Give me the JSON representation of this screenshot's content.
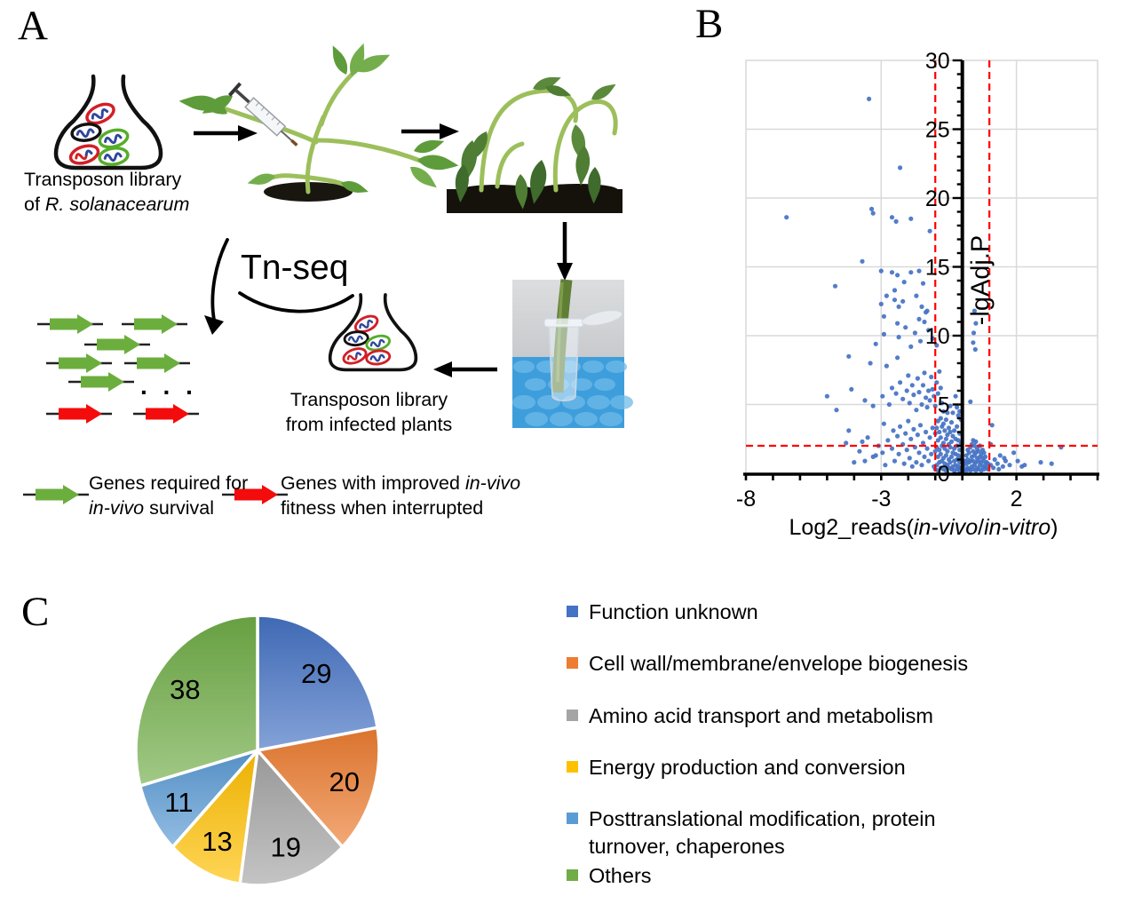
{
  "figure": {
    "panelA": {
      "label": "A",
      "flask1_caption_l1": "Transposon library",
      "flask1_caption_l2_prefix": "of ",
      "flask1_caption_l2_species": "R. solanacearum",
      "tnseq": "Tn-seq",
      "flask2_caption_l1": "Transposon library",
      "flask2_caption_l2": "from infected plants",
      "reads_ellipsis": ". . .",
      "legend_green_l1": "Genes required for",
      "legend_green_l2_italic": "in-vivo",
      "legend_green_l2_rest": " survival",
      "legend_red_l1_prefix": "Genes with improved ",
      "legend_red_l1_italic": "in-vivo",
      "legend_red_l2": "fitness when interrupted",
      "green_arrow_color": "#6CAE3E",
      "red_arrow_color": "#F40B0B"
    },
    "panelB": {
      "label": "B"
    },
    "panelC": {
      "label": "C"
    }
  },
  "chart_data": [
    {
      "type": "scatter",
      "panel": "B",
      "title": "",
      "xlabel": "Log2_reads(in-vivo/in-vitro)",
      "xlabel_parts": [
        {
          "t": "Log2_reads(",
          "i": false
        },
        {
          "t": "in-vivo",
          "i": true
        },
        {
          "t": "/",
          "i": false
        },
        {
          "t": "in-vitro",
          "i": true
        },
        {
          "t": ")",
          "i": false
        }
      ],
      "ylabel": "-lgAdj.P",
      "xlim": [
        -8,
        5
      ],
      "ylim": [
        0,
        30
      ],
      "x_ticks": [
        -8,
        -3,
        2
      ],
      "y_ticks": [
        0,
        5,
        10,
        15,
        20,
        25,
        30
      ],
      "x_gridlines": [
        -3,
        2
      ],
      "grid_color": "#D9D9D9",
      "point_color": "#4472C4",
      "thresholds": {
        "vertical_x": [
          -1,
          1
        ],
        "horizontal_y": 2,
        "color": "#FF0000",
        "style": "dashed"
      },
      "points": [
        [
          -3.45,
          27.2
        ],
        [
          -2.3,
          22.2
        ],
        [
          -6.5,
          18.6
        ],
        [
          -3.35,
          19.2
        ],
        [
          -3.3,
          18.9
        ],
        [
          -2.6,
          18.6
        ],
        [
          -2.45,
          18.3
        ],
        [
          -1.9,
          18.5
        ],
        [
          -1.2,
          17.6
        ],
        [
          -3.7,
          15.4
        ],
        [
          -4.7,
          13.6
        ],
        [
          -3.0,
          14.7
        ],
        [
          -2.6,
          14.6
        ],
        [
          -2.4,
          14.4
        ],
        [
          -2.15,
          13.9
        ],
        [
          -1.9,
          14.6
        ],
        [
          -1.6,
          14.7
        ],
        [
          -1.45,
          13.8
        ],
        [
          -2.8,
          12.9
        ],
        [
          -2.5,
          13.3
        ],
        [
          -3.0,
          12.3
        ],
        [
          -2.5,
          12.6
        ],
        [
          -2.35,
          12.1
        ],
        [
          -2.2,
          12.5
        ],
        [
          -1.7,
          12.9
        ],
        [
          -1.5,
          12.1
        ],
        [
          -1.35,
          11.7
        ],
        [
          -2.9,
          11.4
        ],
        [
          -2.4,
          10.9
        ],
        [
          -1.6,
          11.2
        ],
        [
          -1.4,
          11.0
        ],
        [
          -1.3,
          11.8
        ],
        [
          -2.9,
          10.1
        ],
        [
          -2.35,
          9.9
        ],
        [
          -1.75,
          10.2
        ],
        [
          -1.55,
          9.6
        ],
        [
          -1.9,
          9.2
        ],
        [
          -3.2,
          9.4
        ],
        [
          -2.1,
          10.6
        ],
        [
          -1.25,
          10.4
        ],
        [
          -1.1,
          9.8
        ],
        [
          -0.95,
          9.3
        ],
        [
          0.45,
          11.8
        ],
        [
          0.5,
          10.9
        ],
        [
          0.42,
          10.2
        ],
        [
          0.4,
          9.5
        ],
        [
          0.48,
          9.0
        ],
        [
          -4.2,
          8.5
        ],
        [
          -4.1,
          6.1
        ],
        [
          -5.0,
          5.6
        ],
        [
          -4.65,
          4.6
        ],
        [
          -3.4,
          8.0
        ],
        [
          -2.8,
          7.8
        ],
        [
          -2.4,
          8.4
        ],
        [
          -3.6,
          5.3
        ],
        [
          -3.3,
          4.9
        ],
        [
          -2.95,
          5.6
        ],
        [
          -2.7,
          5.0
        ],
        [
          -2.6,
          6.2
        ],
        [
          -2.45,
          5.8
        ],
        [
          -2.3,
          6.6
        ],
        [
          -2.2,
          5.4
        ],
        [
          -2.05,
          6.0
        ],
        [
          -2.0,
          7.1
        ],
        [
          -1.95,
          5.1
        ],
        [
          -1.85,
          6.4
        ],
        [
          -1.8,
          5.7
        ],
        [
          -1.7,
          4.6
        ],
        [
          -1.65,
          6.9
        ],
        [
          -1.6,
          5.9
        ],
        [
          -1.5,
          5.0
        ],
        [
          -1.45,
          6.4
        ],
        [
          -1.4,
          7.3
        ],
        [
          -1.35,
          5.5
        ],
        [
          -1.3,
          4.8
        ],
        [
          -1.25,
          6.0
        ],
        [
          -1.2,
          5.3
        ],
        [
          -1.15,
          7.0
        ],
        [
          -1.1,
          6.1
        ],
        [
          -1.05,
          5.6
        ],
        [
          -1.0,
          4.9
        ],
        [
          -0.95,
          6.6
        ],
        [
          -0.9,
          5.8
        ],
        [
          -0.85,
          7.4
        ],
        [
          -0.8,
          6.2
        ],
        [
          -0.75,
          5.1
        ],
        [
          -0.7,
          4.5
        ],
        [
          -2.9,
          3.6
        ],
        [
          -2.75,
          2.4
        ],
        [
          -2.6,
          1.8
        ],
        [
          -2.55,
          3.1
        ],
        [
          -2.5,
          0.9
        ],
        [
          -2.4,
          2.7
        ],
        [
          -2.35,
          1.4
        ],
        [
          -2.3,
          3.4
        ],
        [
          -2.2,
          2.1
        ],
        [
          -2.15,
          0.7
        ],
        [
          -2.1,
          2.9
        ],
        [
          -2.05,
          1.7
        ],
        [
          -2.0,
          3.8
        ],
        [
          -1.95,
          1.1
        ],
        [
          -1.9,
          2.5
        ],
        [
          -1.85,
          0.5
        ],
        [
          -1.8,
          3.2
        ],
        [
          -1.75,
          1.9
        ],
        [
          -1.7,
          0.8
        ],
        [
          -1.65,
          2.8
        ],
        [
          -1.6,
          1.5
        ],
        [
          -1.55,
          3.5
        ],
        [
          -1.5,
          0.6
        ],
        [
          -1.45,
          2.2
        ],
        [
          -1.4,
          1.2
        ],
        [
          -1.35,
          3.0
        ],
        [
          -1.3,
          1.8
        ],
        [
          -1.25,
          0.9
        ],
        [
          -1.2,
          2.6
        ],
        [
          -1.15,
          1.4
        ],
        [
          -1.1,
          3.3
        ],
        [
          -1.05,
          0.5
        ],
        [
          -3.1,
          2.0
        ],
        [
          -3.3,
          1.2
        ],
        [
          -3.5,
          2.6
        ],
        [
          -3.8,
          1.6
        ],
        [
          -4.0,
          0.8
        ],
        [
          -4.3,
          2.2
        ],
        [
          -4.2,
          3.1
        ],
        [
          -3.7,
          2.3
        ],
        [
          -3.2,
          1.3
        ],
        [
          -3.6,
          0.9
        ],
        [
          -2.95,
          1.5
        ],
        [
          -2.85,
          0.6
        ],
        [
          -0.35,
          4.4
        ],
        [
          -0.2,
          4.8
        ],
        [
          -0.15,
          4.2
        ],
        [
          -0.45,
          4.9
        ],
        [
          -0.25,
          5.6
        ],
        [
          -0.1,
          4.5
        ],
        [
          -0.55,
          4.4
        ],
        [
          -0.05,
          3.9
        ],
        [
          -1.0,
          0.3
        ],
        [
          -1.0,
          1.6
        ],
        [
          -1.0,
          2.9
        ],
        [
          -0.95,
          0.6
        ],
        [
          -0.95,
          1.9
        ],
        [
          -0.95,
          3.3
        ],
        [
          -0.9,
          0.2
        ],
        [
          -0.9,
          1.2
        ],
        [
          -0.9,
          2.4
        ],
        [
          -0.9,
          3.8
        ],
        [
          -0.85,
          0.8
        ],
        [
          -0.85,
          1.7
        ],
        [
          -0.85,
          3.0
        ],
        [
          -0.8,
          0.4
        ],
        [
          -0.8,
          1.4
        ],
        [
          -0.8,
          2.6
        ],
        [
          -0.8,
          4.0
        ],
        [
          -0.75,
          0.9
        ],
        [
          -0.75,
          2.0
        ],
        [
          -0.75,
          3.4
        ],
        [
          -0.7,
          0.3
        ],
        [
          -0.7,
          1.1
        ],
        [
          -0.7,
          2.2
        ],
        [
          -0.7,
          3.6
        ],
        [
          -0.65,
          0.7
        ],
        [
          -0.65,
          1.8
        ],
        [
          -0.65,
          3.1
        ],
        [
          -0.6,
          0.2
        ],
        [
          -0.6,
          1.3
        ],
        [
          -0.6,
          2.5
        ],
        [
          -0.6,
          3.9
        ],
        [
          -0.55,
          0.6
        ],
        [
          -0.55,
          1.6
        ],
        [
          -0.55,
          2.8
        ],
        [
          -0.5,
          0.4
        ],
        [
          -0.5,
          1.0
        ],
        [
          -0.5,
          2.1
        ],
        [
          -0.5,
          3.3
        ],
        [
          -0.45,
          0.8
        ],
        [
          -0.45,
          1.9
        ],
        [
          -0.45,
          3.0
        ],
        [
          -0.4,
          0.3
        ],
        [
          -0.4,
          1.2
        ],
        [
          -0.4,
          2.3
        ],
        [
          -0.4,
          3.7
        ],
        [
          -0.35,
          0.5
        ],
        [
          -0.35,
          1.5
        ],
        [
          -0.35,
          2.7
        ],
        [
          -0.3,
          0.2
        ],
        [
          -0.3,
          0.9
        ],
        [
          -0.3,
          1.8
        ],
        [
          -0.3,
          3.1
        ],
        [
          -0.25,
          0.6
        ],
        [
          -0.25,
          1.4
        ],
        [
          -0.25,
          2.5
        ],
        [
          -0.2,
          0.3
        ],
        [
          -0.2,
          1.0
        ],
        [
          -0.2,
          2.0
        ],
        [
          -0.2,
          3.4
        ],
        [
          -0.15,
          0.5
        ],
        [
          -0.15,
          1.3
        ],
        [
          -0.15,
          2.4
        ],
        [
          -0.1,
          0.2
        ],
        [
          -0.1,
          0.8
        ],
        [
          -0.1,
          1.7
        ],
        [
          -0.1,
          2.9
        ],
        [
          -0.05,
          0.4
        ],
        [
          -0.05,
          1.1
        ],
        [
          -0.05,
          2.2
        ],
        [
          0.05,
          0.2
        ],
        [
          0.05,
          0.6
        ],
        [
          0.1,
          0.3
        ],
        [
          0.1,
          0.9
        ],
        [
          0.15,
          0.2
        ],
        [
          0.15,
          0.7
        ],
        [
          0.15,
          1.3
        ],
        [
          0.2,
          0.4
        ],
        [
          0.2,
          1.0
        ],
        [
          0.2,
          1.7
        ],
        [
          0.25,
          0.3
        ],
        [
          0.25,
          0.8
        ],
        [
          0.25,
          1.5
        ],
        [
          0.3,
          0.2
        ],
        [
          0.3,
          0.9
        ],
        [
          0.3,
          1.9
        ],
        [
          0.35,
          0.5
        ],
        [
          0.35,
          1.2
        ],
        [
          0.35,
          2.1
        ],
        [
          0.4,
          0.3
        ],
        [
          0.4,
          0.9
        ],
        [
          0.4,
          1.6
        ],
        [
          0.4,
          2.4
        ],
        [
          0.45,
          0.6
        ],
        [
          0.45,
          1.3
        ],
        [
          0.45,
          2.0
        ],
        [
          0.5,
          0.2
        ],
        [
          0.5,
          0.8
        ],
        [
          0.5,
          1.5
        ],
        [
          0.5,
          2.3
        ],
        [
          0.55,
          0.4
        ],
        [
          0.55,
          1.1
        ],
        [
          0.55,
          1.8
        ],
        [
          0.6,
          0.3
        ],
        [
          0.6,
          0.9
        ],
        [
          0.6,
          1.6
        ],
        [
          0.65,
          0.6
        ],
        [
          0.65,
          1.2
        ],
        [
          0.65,
          2.0
        ],
        [
          0.7,
          0.2
        ],
        [
          0.7,
          0.8
        ],
        [
          0.7,
          1.4
        ],
        [
          0.75,
          0.5
        ],
        [
          0.75,
          1.1
        ],
        [
          0.75,
          1.7
        ],
        [
          0.8,
          0.3
        ],
        [
          0.8,
          0.9
        ],
        [
          0.8,
          1.5
        ],
        [
          0.85,
          0.6
        ],
        [
          0.85,
          1.2
        ],
        [
          0.9,
          0.4
        ],
        [
          0.9,
          0.8
        ],
        [
          0.95,
          0.3
        ],
        [
          0.95,
          0.7
        ],
        [
          0.3,
          5.2
        ],
        [
          1.05,
          2.1
        ],
        [
          1.1,
          3.5
        ],
        [
          1.2,
          1.0
        ],
        [
          1.3,
          0.7
        ],
        [
          1.4,
          1.3
        ],
        [
          1.5,
          0.5
        ],
        [
          1.6,
          0.9
        ],
        [
          1.75,
          0.6
        ],
        [
          1.9,
          1.5
        ],
        [
          2.2,
          0.5
        ],
        [
          2.3,
          0.6
        ],
        [
          2.9,
          0.8
        ],
        [
          3.3,
          0.7
        ],
        [
          3.65,
          1.9
        ],
        [
          1.15,
          0.4
        ],
        [
          1.35,
          0.3
        ],
        [
          1.05,
          0.6
        ],
        [
          1.55,
          1.1
        ],
        [
          2.05,
          0.9
        ]
      ]
    },
    {
      "type": "pie",
      "panel": "C",
      "title": "",
      "values": [
        29,
        20,
        19,
        13,
        11,
        38
      ],
      "labels": [
        "29",
        "20",
        "19",
        "13",
        "11",
        "38"
      ],
      "colors": [
        "#4472C4",
        "#ED7D31",
        "#A5A5A5",
        "#FFC000",
        "#5B9BD5",
        "#70AD47"
      ],
      "legend": [
        "Function unknown",
        "Cell wall/membrane/envelope biogenesis",
        "Amino acid transport and metabolism",
        "Energy production and conversion",
        "Posttranslational modification, protein turnover, chaperones",
        "Others"
      ],
      "start_angle_deg": 0,
      "direction": "clockwise",
      "legend_position": "right"
    }
  ]
}
